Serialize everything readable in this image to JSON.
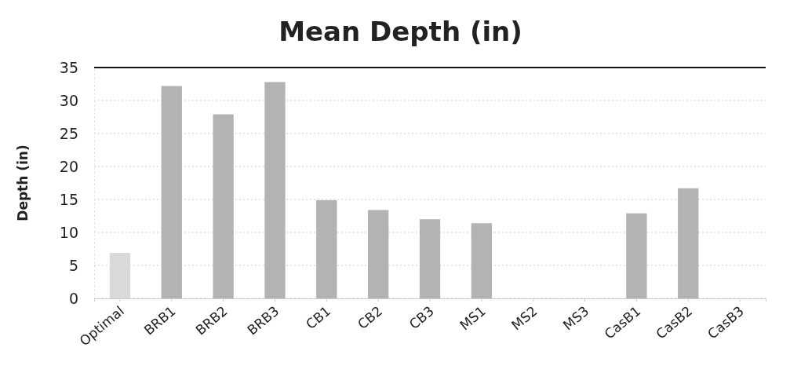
{
  "chart_data": {
    "type": "bar",
    "title": "Mean Depth (in)",
    "ylabel": "Depth (in)",
    "categories": [
      "Optimal",
      "BRB1",
      "BRB2",
      "BRB3",
      "CB1",
      "CB2",
      "CB3",
      "MS1",
      "MS2",
      "MS3",
      "CasB1",
      "CasB2",
      "CasB3"
    ],
    "values": [
      6.9,
      32.2,
      27.9,
      32.8,
      14.9,
      13.4,
      12.0,
      11.4,
      null,
      null,
      12.9,
      16.7,
      null
    ],
    "colors": [
      "#d9d9d9",
      "#b3b3b3",
      "#b3b3b3",
      "#b3b3b3",
      "#b3b3b3",
      "#b3b3b3",
      "#b3b3b3",
      "#b3b3b3",
      null,
      null,
      "#b3b3b3",
      "#b3b3b3",
      null
    ],
    "ylim": [
      0,
      35
    ],
    "yticks": [
      0,
      5,
      10,
      15,
      20,
      25,
      30,
      35
    ],
    "grid": "y"
  }
}
